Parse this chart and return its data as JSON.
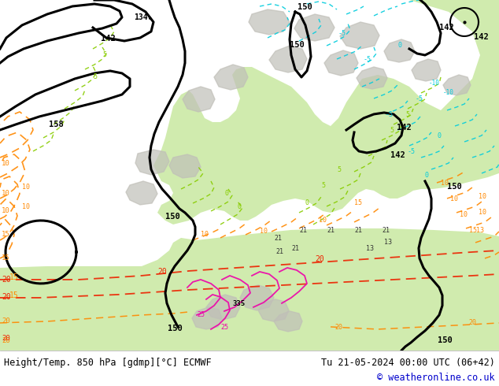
{
  "title_left": "Height/Temp. 850 hPa [gdmp][°C] ECMWF",
  "title_right": "Tu 21-05-2024 00:00 UTC (06+42)",
  "copyright": "© weatheronline.co.uk",
  "bg_color": "#ffffff",
  "footer_text_color": "#000000",
  "copyright_color": "#0000cc",
  "map_bg": "#f2f2ee",
  "green_fill": "#c8e8a0",
  "gray_fill": "#c0bfb8",
  "black_line": "#000000",
  "orange_line": "#ff8800",
  "red_line": "#ee2200",
  "cyan_line": "#00ccdd",
  "lime_line": "#88cc00",
  "magenta_line": "#ee00aa",
  "figwidth": 6.34,
  "figheight": 4.9,
  "dpi": 100
}
